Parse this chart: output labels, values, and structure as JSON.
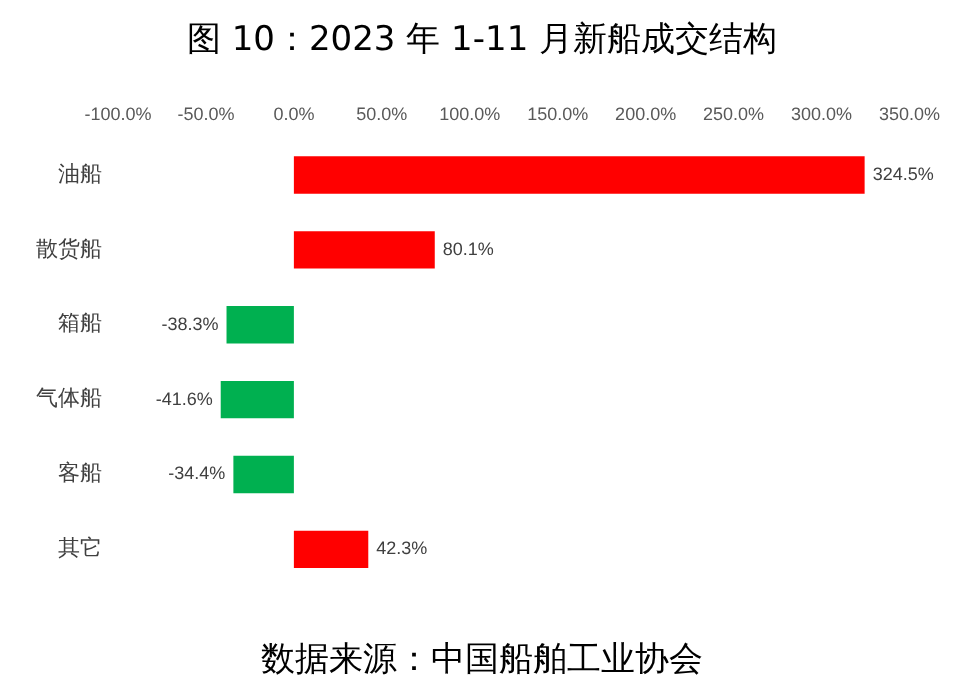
{
  "chart_data": {
    "type": "bar",
    "orientation": "horizontal",
    "title": "图 10：2023 年 1-11 月新船成交结构",
    "categories": [
      "油船",
      "散货船",
      "箱船",
      "气体船",
      "客船",
      "其它"
    ],
    "values": [
      324.5,
      80.1,
      -38.3,
      -41.6,
      -34.4,
      42.3
    ],
    "colors": [
      "#ff0000",
      "#ff0000",
      "#00b050",
      "#00b050",
      "#00b050",
      "#ff0000"
    ],
    "value_labels": [
      "324.5%",
      "80.1%",
      "-38.3%",
      "-41.6%",
      "-34.4%",
      "42.3%"
    ],
    "xlim": [
      -100,
      350
    ],
    "xticks": [
      {
        "value": -100,
        "label": "-100.0%"
      },
      {
        "value": -50,
        "label": "-50.0%"
      },
      {
        "value": 0,
        "label": "0.0%"
      },
      {
        "value": 50,
        "label": "50.0%"
      },
      {
        "value": 100,
        "label": "100.0%"
      },
      {
        "value": 150,
        "label": "150.0%"
      },
      {
        "value": 200,
        "label": "200.0%"
      },
      {
        "value": 250,
        "label": "250.0%"
      },
      {
        "value": 300,
        "label": "300.0%"
      },
      {
        "value": 350,
        "label": "350.0%"
      }
    ],
    "grid": false,
    "annotations": [
      "数据来源：中国船舶工业协会"
    ]
  }
}
